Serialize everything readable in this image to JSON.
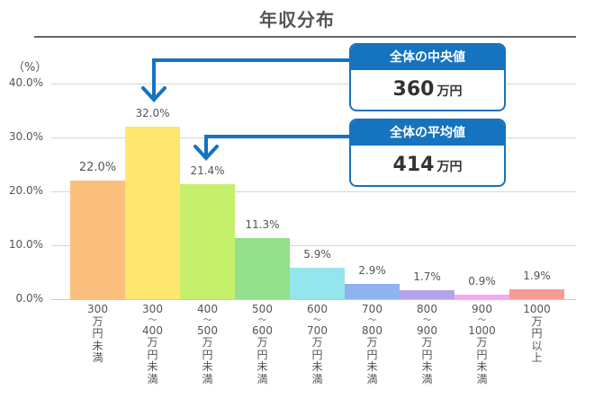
{
  "title": "年収分布",
  "y_unit": "（%）",
  "y_ticks": [
    "40.0%",
    "30.0%",
    "20.0%",
    "10.0%",
    "0.0%"
  ],
  "callouts": {
    "median": {
      "label": "全体の中央値",
      "value": "360",
      "unit": "万円"
    },
    "mean": {
      "label": "全体の平均値",
      "value": "414",
      "unit": "万円"
    }
  },
  "bars": [
    {
      "value_label": "22.0%",
      "x_lines": [
        "300",
        "万",
        "円",
        "未",
        "満"
      ],
      "color": "#fbbf7e"
    },
    {
      "value_label": "32.0%",
      "x_lines": [
        "300",
        "〜",
        "400",
        "万",
        "円",
        "未",
        "満"
      ],
      "color": "#fde76e"
    },
    {
      "value_label": "21.4%",
      "x_lines": [
        "400",
        "〜",
        "500",
        "万",
        "円",
        "未",
        "満"
      ],
      "color": "#c6ef6c"
    },
    {
      "value_label": "11.3%",
      "x_lines": [
        "500",
        "〜",
        "600",
        "万",
        "円",
        "未",
        "満"
      ],
      "color": "#93df8c"
    },
    {
      "value_label": "5.9%",
      "x_lines": [
        "600",
        "〜",
        "700",
        "万",
        "円",
        "未",
        "満"
      ],
      "color": "#94e6ec"
    },
    {
      "value_label": "2.9%",
      "x_lines": [
        "700",
        "〜",
        "800",
        "万",
        "円",
        "未",
        "満"
      ],
      "color": "#8fb3ef"
    },
    {
      "value_label": "1.7%",
      "x_lines": [
        "800",
        "〜",
        "900",
        "万",
        "円",
        "未",
        "満"
      ],
      "color": "#b3a3ec"
    },
    {
      "value_label": "0.9%",
      "x_lines": [
        "900",
        "〜",
        "1000",
        "万",
        "円",
        "未",
        "満"
      ],
      "color": "#f5a8f2"
    },
    {
      "value_label": "1.9%",
      "x_lines": [
        "1000",
        "万",
        "円",
        "以",
        "上"
      ],
      "color": "#f79a94"
    }
  ],
  "colors": {
    "accent": "#1573bf"
  },
  "chart_data": {
    "type": "bar",
    "title": "年収分布",
    "xlabel": "",
    "ylabel": "（%）",
    "ylim": [
      0,
      40
    ],
    "y_ticks": [
      0,
      10,
      20,
      30,
      40
    ],
    "grid": true,
    "categories": [
      "300万円未満",
      "300〜400万円未満",
      "400〜500万円未満",
      "500〜600万円未満",
      "600〜700万円未満",
      "700〜800万円未満",
      "800〜900万円未満",
      "900〜1000万円未満",
      "1000万円以上"
    ],
    "values": [
      22.0,
      32.0,
      21.4,
      11.3,
      5.9,
      2.9,
      1.7,
      0.9,
      1.9
    ],
    "annotations": [
      {
        "text": "全体の中央値 360万円",
        "points_to": "300〜400万円未満"
      },
      {
        "text": "全体の平均値 414万円",
        "points_to": "400〜500万円未満"
      }
    ]
  }
}
